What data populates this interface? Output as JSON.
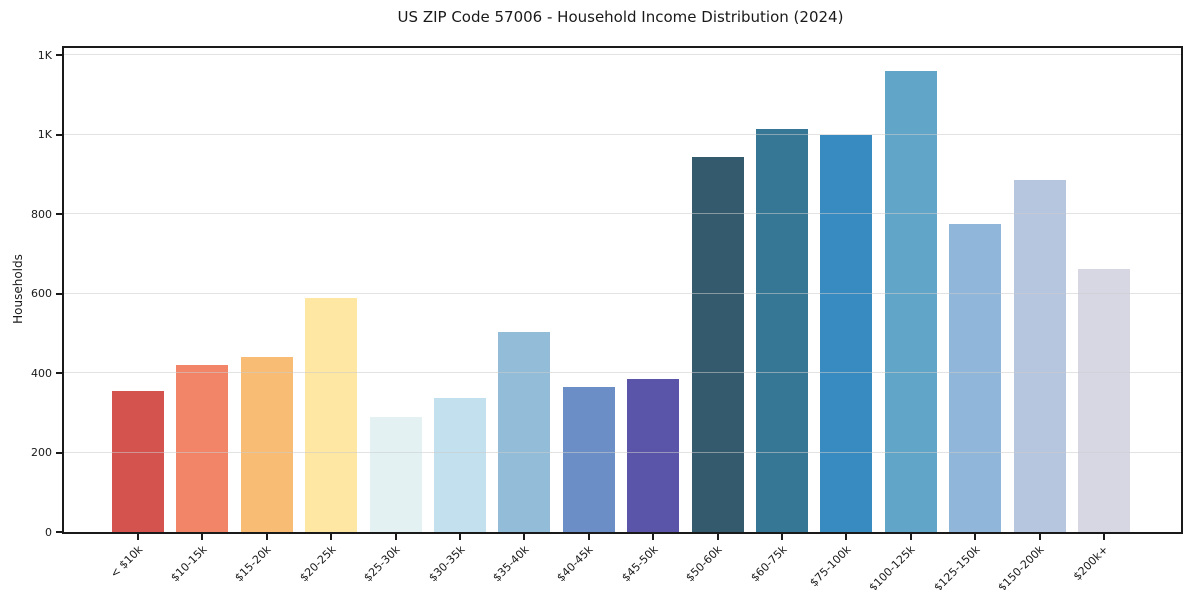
{
  "chart_data": {
    "type": "bar",
    "title": "US ZIP Code 57006 - Household Income Distribution (2024)",
    "xlabel": "",
    "ylabel": "Households",
    "categories": [
      "< $10k",
      "$10-15k",
      "$15-20k",
      "$20-25k",
      "$25-30k",
      "$30-35k",
      "$35-40k",
      "$40-45k",
      "$45-50k",
      "$50-60k",
      "$60-75k",
      "$75-100k",
      "$100-125k",
      "$125-150k",
      "$150-200k",
      "$200k+"
    ],
    "values": [
      355,
      420,
      440,
      590,
      290,
      338,
      503,
      364,
      386,
      945,
      1015,
      1000,
      1160,
      775,
      885,
      662
    ],
    "bar_colors": [
      "#d4534f",
      "#f28567",
      "#f9bc74",
      "#fde7a3",
      "#e3f1f3",
      "#c2e0ee",
      "#93bcd9",
      "#6b8ec6",
      "#5b55aa",
      "#345a6d",
      "#357795",
      "#378bc1",
      "#61a6c8",
      "#90b7d9",
      "#b6c6df",
      "#d7d7e4"
    ],
    "ylim": [
      0,
      1218
    ],
    "yticks": [
      {
        "value": 0,
        "label": "0"
      },
      {
        "value": 200,
        "label": "200"
      },
      {
        "value": 400,
        "label": "400"
      },
      {
        "value": 600,
        "label": "600"
      },
      {
        "value": 800,
        "label": "800"
      },
      {
        "value": 1000,
        "label": "1K"
      },
      {
        "value": 1200,
        "label": "1K"
      }
    ],
    "grid": true,
    "grid_axis": "y",
    "legend_position": "none",
    "xtick_rotation": 45
  },
  "colors": {
    "background": "#ffffff",
    "spine": "#1a1a1a",
    "text": "#1a1a1a",
    "grid": "#cccccc"
  }
}
